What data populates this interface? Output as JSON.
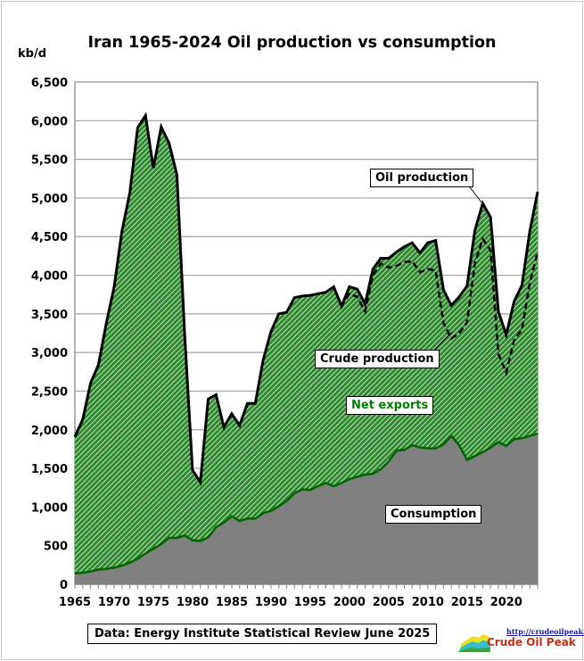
{
  "title": "Iran 1965-2024 Oil production vs consumption",
  "unit": "kb/d",
  "source": "Data: Energy Institute Statistical Review June 2025",
  "logo": {
    "url": "http://crudeoilpeak.info",
    "name": "Crude Oil Peak"
  },
  "labels": {
    "oil_production": "Oil production",
    "crude_production": "Crude production",
    "net_exports": "Net exports",
    "consumption": "Consumption"
  },
  "colors": {
    "net_exports_fill": "#2e8b2e",
    "consumption_fill": "#808080",
    "consumption_line": "#006400",
    "production_line": "#000000",
    "net_exports_text": "#008000"
  },
  "chart_data": {
    "type": "area",
    "title": "Iran 1965-2024 Oil production vs consumption",
    "ylabel": "kb/d",
    "ylim": [
      0,
      6500
    ],
    "xlim": [
      1965,
      2024
    ],
    "grid": true,
    "yticks": [
      "0",
      "500",
      "1,000",
      "1,500",
      "2,000",
      "2,500",
      "3,000",
      "3,500",
      "4,000",
      "4,500",
      "5,000",
      "5,500",
      "6,000",
      "6,500"
    ],
    "xticks": [
      "1965",
      "1970",
      "1975",
      "1980",
      "1985",
      "1990",
      "1995",
      "2000",
      "2005",
      "2010",
      "2015",
      "2020"
    ],
    "years_start": 1965,
    "series": [
      {
        "name": "Oil production",
        "style": "solid line, top of net exports area",
        "values": [
          1908,
          2132,
          2603,
          2840,
          3376,
          3848,
          4572,
          5067,
          5908,
          6067,
          5387,
          5920,
          5710,
          5302,
          3218,
          1479,
          1321,
          2397,
          2454,
          2032,
          2206,
          2056,
          2340,
          2340,
          2900,
          3270,
          3500,
          3520,
          3710,
          3730,
          3740,
          3760,
          3780,
          3850,
          3600,
          3850,
          3820,
          3630,
          4080,
          4220,
          4220,
          4300,
          4370,
          4420,
          4290,
          4420,
          4450,
          3810,
          3610,
          3720,
          3860,
          4580,
          4930,
          4750,
          3530,
          3230,
          3660,
          3870,
          4570,
          5080
        ]
      },
      {
        "name": "Crude production",
        "style": "dashed line",
        "start_year": 1998,
        "values": [
          3850,
          3600,
          3760,
          3720,
          3530,
          4000,
          4150,
          4100,
          4120,
          4170,
          4180,
          4040,
          4080,
          4060,
          3380,
          3180,
          3250,
          3390,
          4150,
          4470,
          4320,
          2980,
          2740,
          3160,
          3300,
          3900,
          4300
        ]
      },
      {
        "name": "Consumption",
        "style": "grey area",
        "values": [
          140,
          150,
          165,
          190,
          200,
          215,
          240,
          280,
          330,
          400,
          460,
          520,
          600,
          600,
          630,
          570,
          560,
          610,
          740,
          800,
          880,
          820,
          850,
          850,
          920,
          950,
          1010,
          1080,
          1180,
          1230,
          1220,
          1270,
          1310,
          1270,
          1310,
          1360,
          1390,
          1420,
          1430,
          1490,
          1590,
          1730,
          1740,
          1800,
          1770,
          1760,
          1760,
          1810,
          1920,
          1800,
          1610,
          1660,
          1710,
          1770,
          1840,
          1790,
          1880,
          1890,
          1920,
          1950
        ]
      },
      {
        "name": "Net exports",
        "style": "hatched green area between consumption and oil production"
      }
    ]
  }
}
